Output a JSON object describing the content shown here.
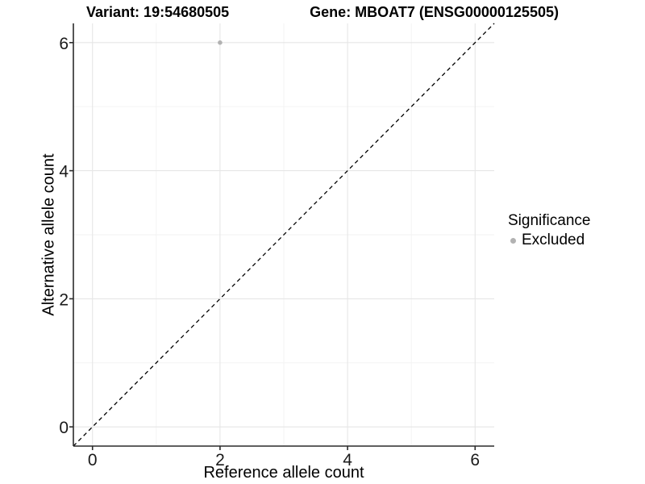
{
  "title": {
    "variant": "Variant: 19:54680505",
    "gene": "Gene: MBOAT7 (ENSG00000125505)"
  },
  "axes": {
    "x_label": "Reference allele count",
    "y_label": "Alternative allele count"
  },
  "legend": {
    "title": "Significance",
    "entries": [
      {
        "label": "Excluded",
        "color": "#b2b2b2"
      }
    ]
  },
  "chart_data": {
    "type": "scatter",
    "title": "Variant: 19:54680505    Gene: MBOAT7 (ENSG00000125505)",
    "xlabel": "Reference allele count",
    "ylabel": "Alternative allele count",
    "xlim": [
      -0.3,
      6.3
    ],
    "ylim": [
      -0.3,
      6.3
    ],
    "x_ticks": [
      0,
      2,
      4,
      6
    ],
    "y_ticks": [
      0,
      2,
      4,
      6
    ],
    "x_minor_gridlines": [
      1,
      3,
      5
    ],
    "y_minor_gridlines": [
      1,
      3,
      5
    ],
    "grid": "on",
    "legend_position": "right",
    "series": [
      {
        "name": "Excluded",
        "color": "#b2b2b2",
        "points": [
          {
            "x": 2,
            "y": 6
          }
        ]
      }
    ],
    "reference_line": {
      "kind": "identity",
      "from": [
        -0.3,
        -0.3
      ],
      "to": [
        6.3,
        6.3
      ],
      "style": "dashed",
      "color": "#000000"
    },
    "colors": {
      "point": "#b2b2b2",
      "grid_major": "#e6e6e6",
      "grid_minor": "#f2f2f2",
      "axis": "#2b2b2b",
      "tick_label": "#1a1a1a"
    }
  }
}
